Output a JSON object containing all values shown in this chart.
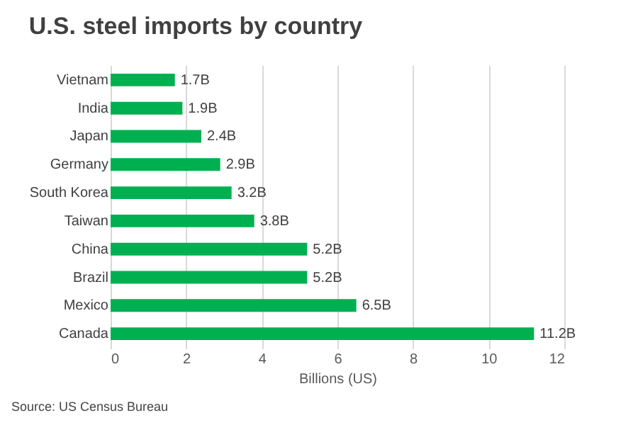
{
  "chart_data": {
    "type": "bar",
    "orientation": "horizontal",
    "title": "U.S. steel imports by country",
    "xlabel": "Billions (US)",
    "categories": [
      "Vietnam",
      "India",
      "Japan",
      "Germany",
      "South Korea",
      "Taiwan",
      "China",
      "Brazil",
      "Mexico",
      "Canada"
    ],
    "values": [
      1.7,
      1.9,
      2.4,
      2.9,
      3.2,
      3.8,
      5.2,
      5.2,
      6.5,
      11.2
    ],
    "value_labels": [
      "1.7B",
      "1.9B",
      "2.4B",
      "2.9B",
      "3.2B",
      "3.8B",
      "5.2B",
      "5.2B",
      "6.5B",
      "11.2B"
    ],
    "color": "#00b050",
    "xlim": [
      0,
      12
    ],
    "xticks": [
      0,
      2,
      4,
      6,
      8,
      10,
      12
    ],
    "grid": "x",
    "annotations": [
      "Source: US Census Bureau"
    ]
  }
}
